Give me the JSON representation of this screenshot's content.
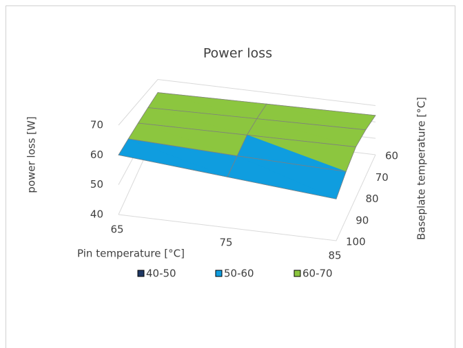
{
  "chart_data": {
    "type": "surface",
    "title": "Power loss",
    "z_label": "power loss [W]",
    "x_label": "Pin temperature [°C]",
    "y_label": "Baseplate temperature [°C]",
    "x": [
      65,
      75,
      85
    ],
    "y": [
      60,
      70,
      80,
      90,
      100
    ],
    "values": [
      [
        62,
        63,
        64
      ],
      [
        61.5,
        62.5,
        63.5
      ],
      [
        61,
        61.5,
        62
      ],
      [
        60.5,
        59,
        58
      ],
      [
        60,
        57,
        54
      ]
    ],
    "zlim": [
      40,
      70
    ],
    "zticks": [
      40,
      50,
      60,
      70
    ],
    "legend": [
      {
        "name": "40-50",
        "color": "#1f3864"
      },
      {
        "name": "50-60",
        "color": "#0f9ddf"
      },
      {
        "name": "60-70",
        "color": "#8cc63f"
      }
    ]
  }
}
